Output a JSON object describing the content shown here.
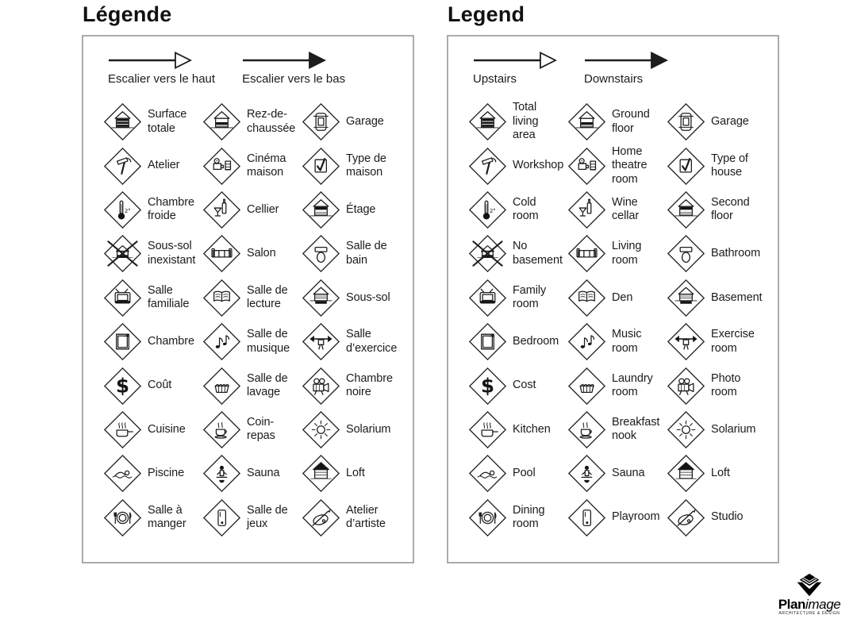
{
  "colors": {
    "ink": "#1c1c1c",
    "panel_border": "#ababab",
    "background": "#ffffff"
  },
  "panels": [
    {
      "title": "Légende",
      "arrows": [
        {
          "style": "outline",
          "label": "Escalier vers le haut"
        },
        {
          "style": "filled",
          "label": "Escalier vers le bas"
        }
      ],
      "items": [
        {
          "icon": "total-area",
          "label": "Surface\ntotale"
        },
        {
          "icon": "ground-floor",
          "label": "Rez-de-\nchaussée"
        },
        {
          "icon": "garage",
          "label": "Garage"
        },
        {
          "icon": "workshop",
          "label": "Atelier"
        },
        {
          "icon": "home-theatre",
          "label": "Cinéma\nmaison"
        },
        {
          "icon": "type-of-house",
          "label": "Type de\nmaison"
        },
        {
          "icon": "cold-room",
          "label": "Chambre\nfroide"
        },
        {
          "icon": "wine-cellar",
          "label": "Cellier"
        },
        {
          "icon": "second-floor",
          "label": "Étage"
        },
        {
          "icon": "no-basement",
          "label": "Sous-sol\ninexistant"
        },
        {
          "icon": "living-room",
          "label": "Salon"
        },
        {
          "icon": "bathroom",
          "label": "Salle de\nbain"
        },
        {
          "icon": "family-room",
          "label": "Salle\nfamiliale"
        },
        {
          "icon": "den",
          "label": "Salle de\nlecture"
        },
        {
          "icon": "basement",
          "label": "Sous-sol"
        },
        {
          "icon": "bedroom",
          "label": "Chambre"
        },
        {
          "icon": "music-room",
          "label": "Salle de\nmusique"
        },
        {
          "icon": "exercise-room",
          "label": "Salle\nd’exercice"
        },
        {
          "icon": "cost",
          "label": "Coût"
        },
        {
          "icon": "laundry-room",
          "label": "Salle de\nlavage"
        },
        {
          "icon": "photo-room",
          "label": "Chambre\nnoire"
        },
        {
          "icon": "kitchen",
          "label": "Cuisine"
        },
        {
          "icon": "breakfast-nook",
          "label": "Coin-\nrepas"
        },
        {
          "icon": "solarium",
          "label": "Solarium"
        },
        {
          "icon": "pool",
          "label": "Piscine"
        },
        {
          "icon": "sauna",
          "label": "Sauna"
        },
        {
          "icon": "loft",
          "label": "Loft"
        },
        {
          "icon": "dining-room",
          "label": "Salle à\nmanger"
        },
        {
          "icon": "playroom",
          "label": "Salle de\njeux"
        },
        {
          "icon": "studio",
          "label": "Atelier\nd’artiste"
        }
      ]
    },
    {
      "title": "Legend",
      "arrows": [
        {
          "style": "outline",
          "label": "Upstairs"
        },
        {
          "style": "filled",
          "label": "Downstairs"
        }
      ],
      "items": [
        {
          "icon": "total-area",
          "label": "Total\nliving\narea"
        },
        {
          "icon": "ground-floor",
          "label": "Ground\nfloor"
        },
        {
          "icon": "garage",
          "label": "Garage"
        },
        {
          "icon": "workshop",
          "label": "Workshop"
        },
        {
          "icon": "home-theatre",
          "label": "Home\ntheatre\nroom"
        },
        {
          "icon": "type-of-house",
          "label": "Type of\nhouse"
        },
        {
          "icon": "cold-room",
          "label": "Cold\nroom"
        },
        {
          "icon": "wine-cellar",
          "label": "Wine\ncellar"
        },
        {
          "icon": "second-floor",
          "label": "Second\nfloor"
        },
        {
          "icon": "no-basement",
          "label": "No\nbasement"
        },
        {
          "icon": "living-room",
          "label": "Living\nroom"
        },
        {
          "icon": "bathroom",
          "label": "Bathroom"
        },
        {
          "icon": "family-room",
          "label": "Family\nroom"
        },
        {
          "icon": "den",
          "label": "Den"
        },
        {
          "icon": "basement",
          "label": "Basement"
        },
        {
          "icon": "bedroom",
          "label": "Bedroom"
        },
        {
          "icon": "music-room",
          "label": "Music\nroom"
        },
        {
          "icon": "exercise-room",
          "label": "Exercise\nroom"
        },
        {
          "icon": "cost",
          "label": "Cost"
        },
        {
          "icon": "laundry-room",
          "label": "Laundry\nroom"
        },
        {
          "icon": "photo-room",
          "label": "Photo\nroom"
        },
        {
          "icon": "kitchen",
          "label": "Kitchen"
        },
        {
          "icon": "breakfast-nook",
          "label": "Breakfast\nnook"
        },
        {
          "icon": "solarium",
          "label": "Solarium"
        },
        {
          "icon": "pool",
          "label": "Pool"
        },
        {
          "icon": "sauna",
          "label": "Sauna"
        },
        {
          "icon": "loft",
          "label": "Loft"
        },
        {
          "icon": "dining-room",
          "label": "Dining\nroom"
        },
        {
          "icon": "playroom",
          "label": "Playroom"
        },
        {
          "icon": "studio",
          "label": "Studio"
        }
      ]
    }
  ],
  "logo": {
    "brand_bold": "Plan",
    "brand_italic": "image",
    "tagline": "ARCHITECTURE & DESIGN"
  }
}
